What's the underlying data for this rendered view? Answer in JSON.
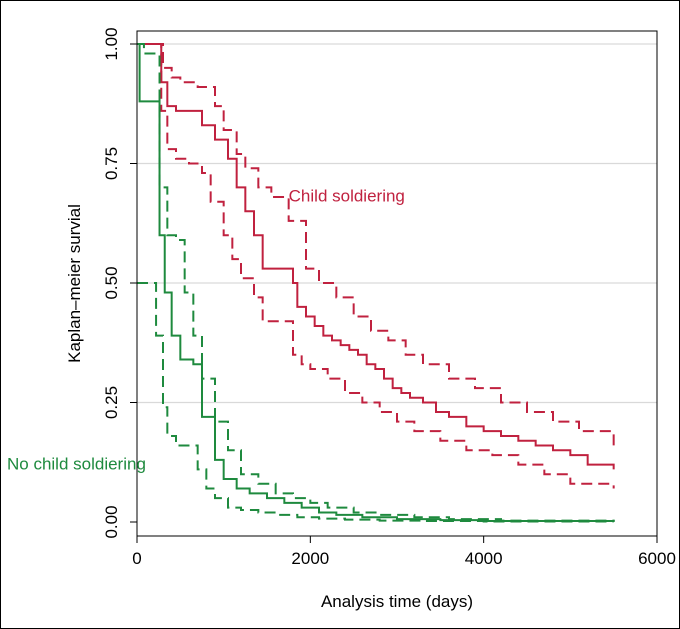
{
  "chart_data": {
    "type": "line",
    "title": "",
    "xlabel": "Analysis time (days)",
    "ylabel": "Kaplan–meier survial",
    "xlim": [
      0,
      6000
    ],
    "ylim": [
      0,
      1
    ],
    "x_ticks": [
      0,
      2000,
      4000,
      6000
    ],
    "x_tick_labels": [
      "0",
      "2000",
      "4000",
      "6000"
    ],
    "y_ticks": [
      0,
      0.25,
      0.5,
      0.75,
      1.0
    ],
    "y_tick_labels": [
      "0.00",
      "0.25",
      "0.50",
      "0.75",
      "1.00"
    ],
    "grid": "horizontal",
    "step": true,
    "annotations": [
      {
        "text": "Child soldiering",
        "x": 1750,
        "y": 0.67,
        "color": "#c0213f"
      },
      {
        "text": "No child soldiering",
        "x": -1500,
        "y": 0.11,
        "color": "#1e8a3e"
      }
    ],
    "series": [
      {
        "group": "child",
        "style": "solid",
        "color": "#c0213f",
        "x": [
          0,
          280,
          350,
          450,
          600,
          750,
          900,
          1050,
          1150,
          1250,
          1350,
          1450,
          1700,
          1800,
          1850,
          1950,
          2050,
          2150,
          2250,
          2350,
          2450,
          2550,
          2650,
          2750,
          2850,
          2950,
          3050,
          3150,
          3300,
          3450,
          3600,
          3800,
          4000,
          4200,
          4400,
          4600,
          4800,
          5000,
          5200,
          5500
        ],
        "y": [
          1.0,
          0.92,
          0.87,
          0.86,
          0.86,
          0.83,
          0.8,
          0.76,
          0.7,
          0.65,
          0.6,
          0.53,
          0.53,
          0.5,
          0.45,
          0.43,
          0.41,
          0.39,
          0.38,
          0.37,
          0.36,
          0.35,
          0.33,
          0.32,
          0.3,
          0.28,
          0.27,
          0.26,
          0.25,
          0.23,
          0.22,
          0.2,
          0.19,
          0.18,
          0.17,
          0.16,
          0.15,
          0.14,
          0.12,
          0.11
        ]
      },
      {
        "group": "child",
        "style": "dashed",
        "color": "#c0213f",
        "x": [
          0,
          300,
          400,
          500,
          700,
          900,
          1000,
          1150,
          1250,
          1400,
          1550,
          1750,
          1950,
          2100,
          2300,
          2500,
          2700,
          2900,
          3100,
          3300,
          3600,
          3900,
          4200,
          4500,
          4800,
          5100,
          5500
        ],
        "y": [
          1.0,
          0.95,
          0.93,
          0.92,
          0.91,
          0.87,
          0.82,
          0.77,
          0.74,
          0.7,
          0.68,
          0.63,
          0.53,
          0.5,
          0.47,
          0.43,
          0.4,
          0.38,
          0.35,
          0.33,
          0.3,
          0.28,
          0.25,
          0.23,
          0.21,
          0.19,
          0.15
        ]
      },
      {
        "group": "child",
        "style": "dashed",
        "color": "#c0213f",
        "x": [
          0,
          280,
          350,
          450,
          600,
          750,
          850,
          1000,
          1100,
          1200,
          1350,
          1450,
          1700,
          1800,
          1900,
          2000,
          2200,
          2400,
          2600,
          2800,
          3000,
          3200,
          3500,
          3800,
          4100,
          4400,
          4700,
          5000,
          5500
        ],
        "y": [
          1.0,
          0.86,
          0.78,
          0.76,
          0.75,
          0.73,
          0.67,
          0.6,
          0.55,
          0.51,
          0.47,
          0.42,
          0.42,
          0.35,
          0.33,
          0.32,
          0.3,
          0.27,
          0.25,
          0.23,
          0.21,
          0.19,
          0.17,
          0.15,
          0.14,
          0.12,
          0.1,
          0.08,
          0.07
        ]
      },
      {
        "group": "no-child",
        "style": "solid",
        "color": "#1e8a3e",
        "x": [
          0,
          30,
          260,
          320,
          400,
          500,
          650,
          750,
          900,
          1000,
          1150,
          1300,
          1500,
          1700,
          1900,
          2100,
          2300,
          2600,
          3000,
          3500,
          4000,
          5500
        ],
        "y": [
          1.0,
          0.88,
          0.6,
          0.48,
          0.39,
          0.34,
          0.33,
          0.22,
          0.13,
          0.09,
          0.07,
          0.06,
          0.05,
          0.04,
          0.03,
          0.02,
          0.015,
          0.01,
          0.006,
          0.004,
          0.002,
          0.001
        ]
      },
      {
        "group": "no-child",
        "style": "dashed",
        "color": "#1e8a3e",
        "x": [
          0,
          80,
          260,
          350,
          450,
          550,
          650,
          750,
          900,
          1050,
          1200,
          1400,
          1600,
          1800,
          2000,
          2200,
          2500,
          2800,
          3200,
          3600,
          4200,
          5500
        ],
        "y": [
          1.0,
          0.98,
          0.7,
          0.6,
          0.59,
          0.48,
          0.39,
          0.3,
          0.21,
          0.15,
          0.1,
          0.08,
          0.06,
          0.05,
          0.04,
          0.03,
          0.02,
          0.015,
          0.01,
          0.006,
          0.003,
          0.002
        ]
      },
      {
        "group": "no-child",
        "style": "dashed",
        "color": "#1e8a3e",
        "x": [
          0,
          220,
          300,
          350,
          450,
          700,
          800,
          900,
          1050,
          1200,
          1400,
          1600,
          1850,
          2100,
          2400,
          2800,
          3300,
          4000,
          5500
        ],
        "y": [
          0.5,
          0.39,
          0.24,
          0.18,
          0.16,
          0.11,
          0.07,
          0.05,
          0.03,
          0.025,
          0.02,
          0.015,
          0.01,
          0.007,
          0.005,
          0.003,
          0.002,
          0.001,
          0.0
        ]
      }
    ]
  }
}
